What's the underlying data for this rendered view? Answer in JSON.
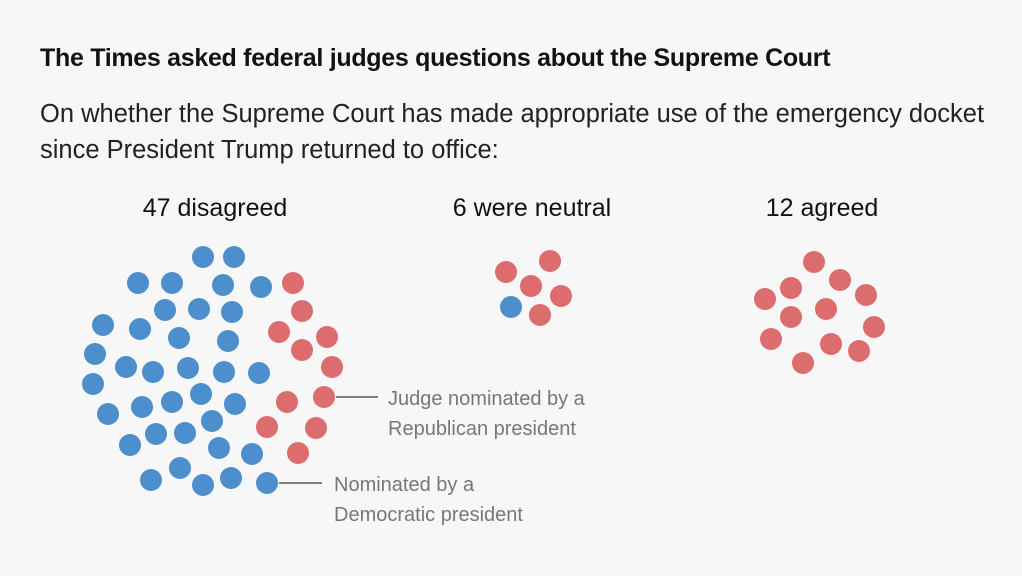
{
  "title": "The Times asked federal judges questions about the Supreme Court",
  "subtitle": "On whether the Supreme Court has made appropriate use of the emergency docket since President Trump returned to office:",
  "annotations": {
    "republican": "Judge nominated by a Republican president",
    "democratic": "Nominated by a Democratic president"
  },
  "colors": {
    "republican": "#dd6c6e",
    "democratic": "#4c8fcc",
    "background": "#f7f7f7"
  },
  "chart_data": {
    "type": "scatter",
    "title": "The Times asked federal judges questions about the Supreme Court",
    "groups": [
      {
        "label": "47 disagreed",
        "total": 47,
        "democratic": 36,
        "republican": 11
      },
      {
        "label": "6 were neutral",
        "total": 6,
        "democratic": 1,
        "republican": 5
      },
      {
        "label": "12 agreed",
        "total": 12,
        "democratic": 0,
        "republican": 12
      }
    ],
    "legend": [
      "Judge nominated by a Republican president",
      "Nominated by a Democratic president"
    ]
  }
}
